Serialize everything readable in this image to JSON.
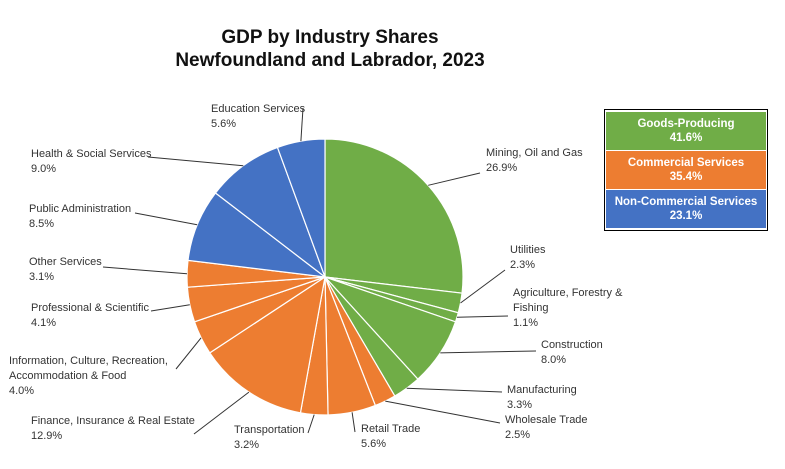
{
  "chart_data": {
    "type": "pie",
    "title": [
      "GDP by Industry Shares",
      "Newfoundland and Labrador, 2023"
    ],
    "slices": [
      {
        "label": [
          "Mining, Oil and Gas"
        ],
        "value": "26.9%",
        "pct": 26.9,
        "group": 0
      },
      {
        "label": [
          "Utilities"
        ],
        "value": "2.3%",
        "pct": 2.3,
        "group": 0
      },
      {
        "label": [
          "Agriculture, Forestry &",
          "Fishing"
        ],
        "value": "1.1%",
        "pct": 1.1,
        "group": 0
      },
      {
        "label": [
          "Construction"
        ],
        "value": "8.0%",
        "pct": 8.0,
        "group": 0
      },
      {
        "label": [
          "Manufacturing"
        ],
        "value": "3.3%",
        "pct": 3.3,
        "group": 0
      },
      {
        "label": [
          "Wholesale Trade"
        ],
        "value": "2.5%",
        "pct": 2.5,
        "group": 1
      },
      {
        "label": [
          "Retail Trade"
        ],
        "value": "5.6%",
        "pct": 5.6,
        "group": 1
      },
      {
        "label": [
          "Transportation"
        ],
        "value": "3.2%",
        "pct": 3.2,
        "group": 1
      },
      {
        "label": [
          "Finance, Insurance & Real Estate"
        ],
        "value": "12.9%",
        "pct": 12.9,
        "group": 1
      },
      {
        "label": [
          "Information, Culture, Recreation,",
          "Accommodation & Food"
        ],
        "value": "4.0%",
        "pct": 4.0,
        "group": 1
      },
      {
        "label": [
          "Professional & Scientific"
        ],
        "value": "4.1%",
        "pct": 4.1,
        "group": 1
      },
      {
        "label": [
          "Other Services"
        ],
        "value": "3.1%",
        "pct": 3.1,
        "group": 1
      },
      {
        "label": [
          "Public Administration"
        ],
        "value": "8.5%",
        "pct": 8.5,
        "group": 2
      },
      {
        "label": [
          "Health & Social Services"
        ],
        "value": "9.0%",
        "pct": 9.0,
        "group": 2
      },
      {
        "label": [
          "Education Services"
        ],
        "value": "5.6%",
        "pct": 5.6,
        "group": 2
      }
    ],
    "groups": [
      {
        "name": "Goods-Producing",
        "value": "41.6%",
        "color": "#70ad47"
      },
      {
        "name": "Commercial Services",
        "value": "35.4%",
        "color": "#ed7d31"
      },
      {
        "name": "Non-Commercial Services",
        "value": "23.1%",
        "color": "#4472c4"
      }
    ],
    "legend_position": "top-right",
    "start": "12 o'clock",
    "direction": "clockwise"
  }
}
